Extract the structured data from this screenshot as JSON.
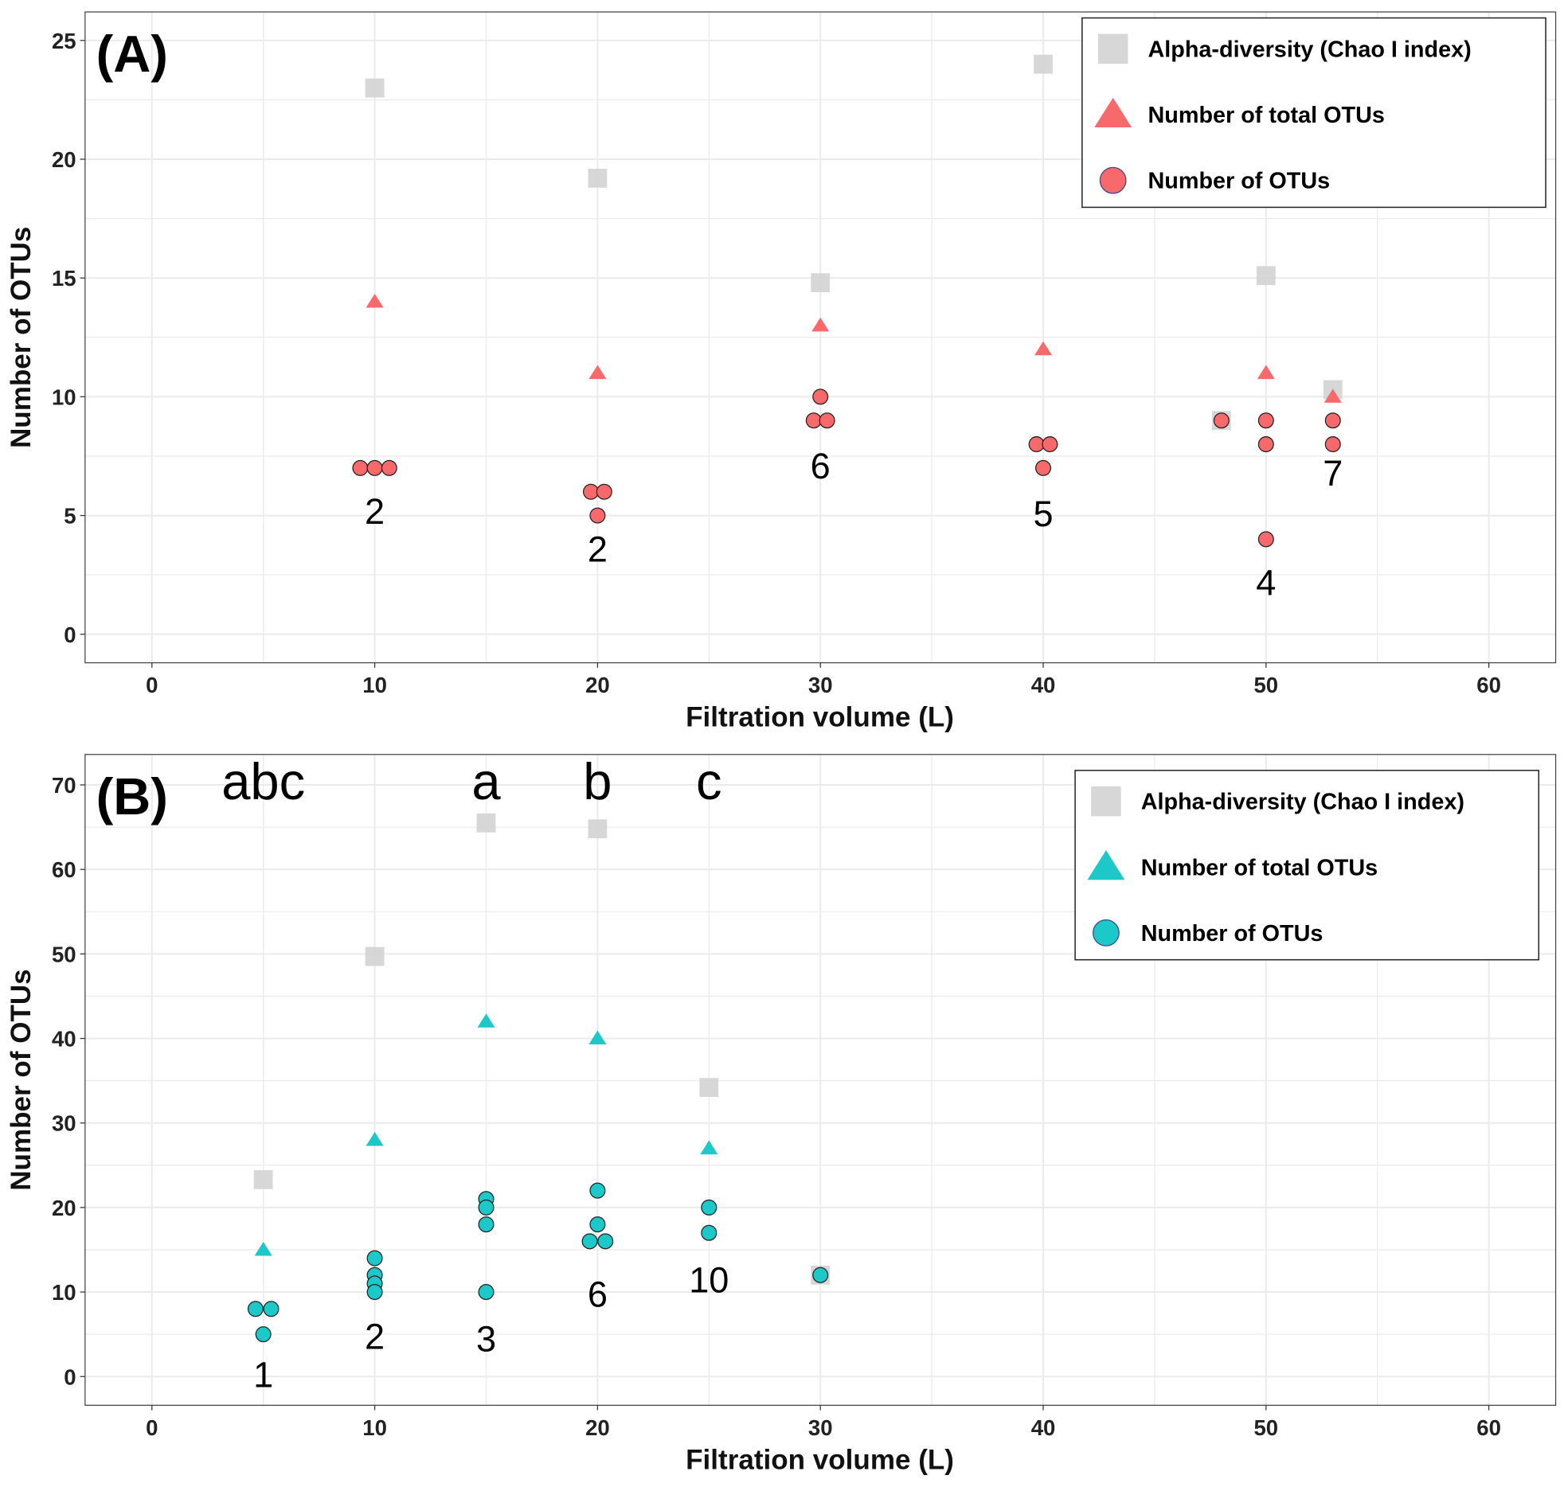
{
  "colors": {
    "chao": "#d3d3d3",
    "panelA": "#f8696b",
    "panelB": "#1dc8c8",
    "grid": "#ebebeb"
  },
  "chart_data": [
    {
      "type": "scatter",
      "panel_label": "(A)",
      "xlabel": "Filtration volume (L)",
      "ylabel": "Number of OTUs",
      "xlim": [
        -3,
        63
      ],
      "ylim": [
        -1.2,
        26.2
      ],
      "xticks": [
        "0",
        "10",
        "20",
        "30",
        "40",
        "50",
        "60"
      ],
      "yticks": [
        "0",
        "5",
        "10",
        "15",
        "20",
        "25"
      ],
      "ytick_step": 5,
      "legend": {
        "placement": "top-right",
        "items": [
          "Alpha-diversity (Chao I index)",
          "Number of total OTUs",
          "Number of OTUs"
        ]
      },
      "series": [
        {
          "name": "Alpha-diversity (Chao I index)",
          "shape": "square",
          "points": [
            [
              10,
              23
            ],
            [
              20,
              19.2
            ],
            [
              30,
              14.8
            ],
            [
              40,
              24
            ],
            [
              48,
              9
            ],
            [
              50,
              15.1
            ],
            [
              53,
              10.3
            ]
          ]
        },
        {
          "name": "Number of total OTUs",
          "shape": "triangle",
          "points": [
            [
              10,
              14
            ],
            [
              20,
              11
            ],
            [
              30,
              13
            ],
            [
              40,
              12
            ],
            [
              50,
              11
            ],
            [
              53,
              10
            ]
          ]
        },
        {
          "name": "Number of OTUs",
          "shape": "circle",
          "points": [
            [
              9.35,
              7
            ],
            [
              10,
              7
            ],
            [
              10.65,
              7
            ],
            [
              19.7,
              6
            ],
            [
              20.3,
              6
            ],
            [
              20,
              5
            ],
            [
              30,
              10
            ],
            [
              29.7,
              9
            ],
            [
              30.3,
              9
            ],
            [
              39.7,
              8
            ],
            [
              40.3,
              8
            ],
            [
              40,
              7
            ],
            [
              48,
              9
            ],
            [
              50,
              9
            ],
            [
              50,
              8
            ],
            [
              50,
              4
            ],
            [
              53,
              9
            ],
            [
              53,
              8
            ]
          ]
        }
      ],
      "annotations": [
        {
          "x": 10,
          "y": 5.2,
          "text": "2"
        },
        {
          "x": 20,
          "y": 3.6,
          "text": "2"
        },
        {
          "x": 30,
          "y": 7.1,
          "text": "6"
        },
        {
          "x": 40,
          "y": 5.1,
          "text": "5"
        },
        {
          "x": 50,
          "y": 2.2,
          "text": "4"
        },
        {
          "x": 53,
          "y": 6.8,
          "text": "7"
        }
      ],
      "letters": []
    },
    {
      "type": "scatter",
      "panel_label": "(B)",
      "xlabel": "Filtration volume (L)",
      "ylabel": "Number of OTUs",
      "xlim": [
        -3,
        63
      ],
      "ylim": [
        -3.4,
        73.6
      ],
      "xticks": [
        "0",
        "10",
        "20",
        "30",
        "40",
        "50",
        "60"
      ],
      "yticks": [
        "0",
        "10",
        "20",
        "30",
        "40",
        "50",
        "60",
        "70"
      ],
      "ytick_step": 10,
      "legend": {
        "placement": "top-right",
        "items": [
          "Alpha-diversity (Chao I index)",
          "Number of total OTUs",
          "Number of OTUs"
        ]
      },
      "series": [
        {
          "name": "Alpha-diversity (Chao I index)",
          "shape": "square",
          "points": [
            [
              5,
              23.3
            ],
            [
              10,
              49.7
            ],
            [
              15,
              65.5
            ],
            [
              20,
              64.8
            ],
            [
              25,
              34.2
            ],
            [
              30,
              12
            ]
          ]
        },
        {
          "name": "Number of total OTUs",
          "shape": "triangle",
          "points": [
            [
              5,
              15
            ],
            [
              10,
              28
            ],
            [
              15,
              42
            ],
            [
              20,
              40
            ],
            [
              25,
              27
            ]
          ]
        },
        {
          "name": "Number of OTUs",
          "shape": "circle",
          "points": [
            [
              4.65,
              8
            ],
            [
              5.35,
              8
            ],
            [
              5,
              5
            ],
            [
              10,
              14
            ],
            [
              10,
              12
            ],
            [
              10,
              11
            ],
            [
              10,
              10
            ],
            [
              15,
              21
            ],
            [
              15,
              20
            ],
            [
              15,
              18
            ],
            [
              15,
              10
            ],
            [
              20,
              22
            ],
            [
              20,
              18
            ],
            [
              19.65,
              16
            ],
            [
              20.35,
              16
            ],
            [
              25,
              20
            ],
            [
              25,
              17
            ],
            [
              30,
              12
            ]
          ]
        }
      ],
      "annotations": [
        {
          "x": 5,
          "y": 0.3,
          "text": "1"
        },
        {
          "x": 10,
          "y": 4.8,
          "text": "2"
        },
        {
          "x": 15,
          "y": 4.5,
          "text": "3"
        },
        {
          "x": 20,
          "y": 9.8,
          "text": "6"
        },
        {
          "x": 25,
          "y": 11.5,
          "text": "10"
        }
      ],
      "letters": [
        {
          "x": 5,
          "text": "abc"
        },
        {
          "x": 15,
          "text": "a"
        },
        {
          "x": 20,
          "text": "b"
        },
        {
          "x": 25,
          "text": "c"
        }
      ]
    }
  ]
}
